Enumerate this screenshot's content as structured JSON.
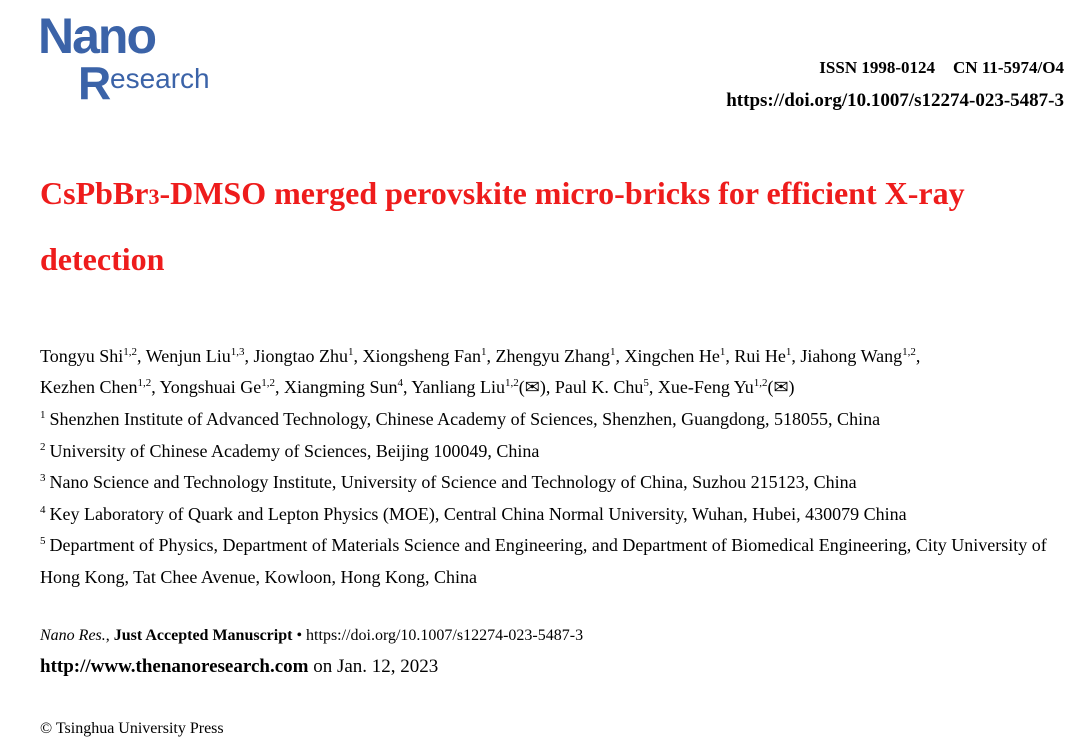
{
  "logo": {
    "text_line1": "Nano",
    "text_r": "R",
    "text_rest": "esearch",
    "color": "#3b63a8"
  },
  "header": {
    "issn": "ISSN 1998-0124",
    "cn": "CN 11-5974/O4",
    "doi": "https://doi.org/10.1007/s12274-023-5487-3"
  },
  "title": {
    "part1": "CsPbBr",
    "sub": "3",
    "part2": "-DMSO merged perovskite micro-bricks for efficient X-ray detection",
    "color": "#ee1c1c"
  },
  "authors": [
    {
      "name": "Tongyu Shi",
      "sup": "1,2",
      "corr": ""
    },
    {
      "name": "Wenjun Liu",
      "sup": "1,3",
      "corr": ""
    },
    {
      "name": "Jiongtao Zhu",
      "sup": "1",
      "corr": ""
    },
    {
      "name": "Xiongsheng Fan",
      "sup": "1",
      "corr": ""
    },
    {
      "name": "Zhengyu Zhang",
      "sup": "1",
      "corr": ""
    },
    {
      "name": "Xingchen He",
      "sup": "1",
      "corr": ""
    },
    {
      "name": "Rui He",
      "sup": "1",
      "corr": ""
    },
    {
      "name": "Jiahong Wang",
      "sup": "1,2",
      "corr": ""
    },
    {
      "name": "Kezhen Chen",
      "sup": "1,2",
      "corr": ""
    },
    {
      "name": "Yongshuai Ge",
      "sup": "1,2",
      "corr": ""
    },
    {
      "name": "Xiangming Sun",
      "sup": "4",
      "corr": ""
    },
    {
      "name": "Yanliang Liu",
      "sup": "1,2",
      "corr": "(✉)"
    },
    {
      "name": "Paul K. Chu",
      "sup": "5",
      "corr": ""
    },
    {
      "name": "Xue-Feng Yu",
      "sup": "1,2",
      "corr": "(✉)"
    }
  ],
  "affiliations": [
    {
      "num": "1",
      "text": "Shenzhen Institute of Advanced Technology, Chinese Academy of Sciences, Shenzhen, Guangdong, 518055, China"
    },
    {
      "num": "2",
      "text": "University of Chinese Academy of Sciences, Beijing 100049, China"
    },
    {
      "num": "3",
      "text": "Nano Science and Technology Institute, University of Science and Technology of China, Suzhou 215123, China"
    },
    {
      "num": "4",
      "text": "Key Laboratory of Quark and Lepton Physics (MOE), Central China Normal University, Wuhan, Hubei, 430079 China"
    },
    {
      "num": "5",
      "text": "Department of Physics, Department of Materials Science and Engineering, and Department of Biomedical Engineering, City University of Hong Kong, Tat Chee Avenue, Kowloon, Hong Kong, China"
    }
  ],
  "citation": {
    "journal": "Nano Res.",
    "status": "Just Accepted Manuscript",
    "doi": "https://doi.org/10.1007/s12274-023-5487-3"
  },
  "site": {
    "url": "http://www.thenanoresearch.com",
    "date": "on Jan. 12, 2023"
  },
  "press": "© Tsinghua University Press"
}
